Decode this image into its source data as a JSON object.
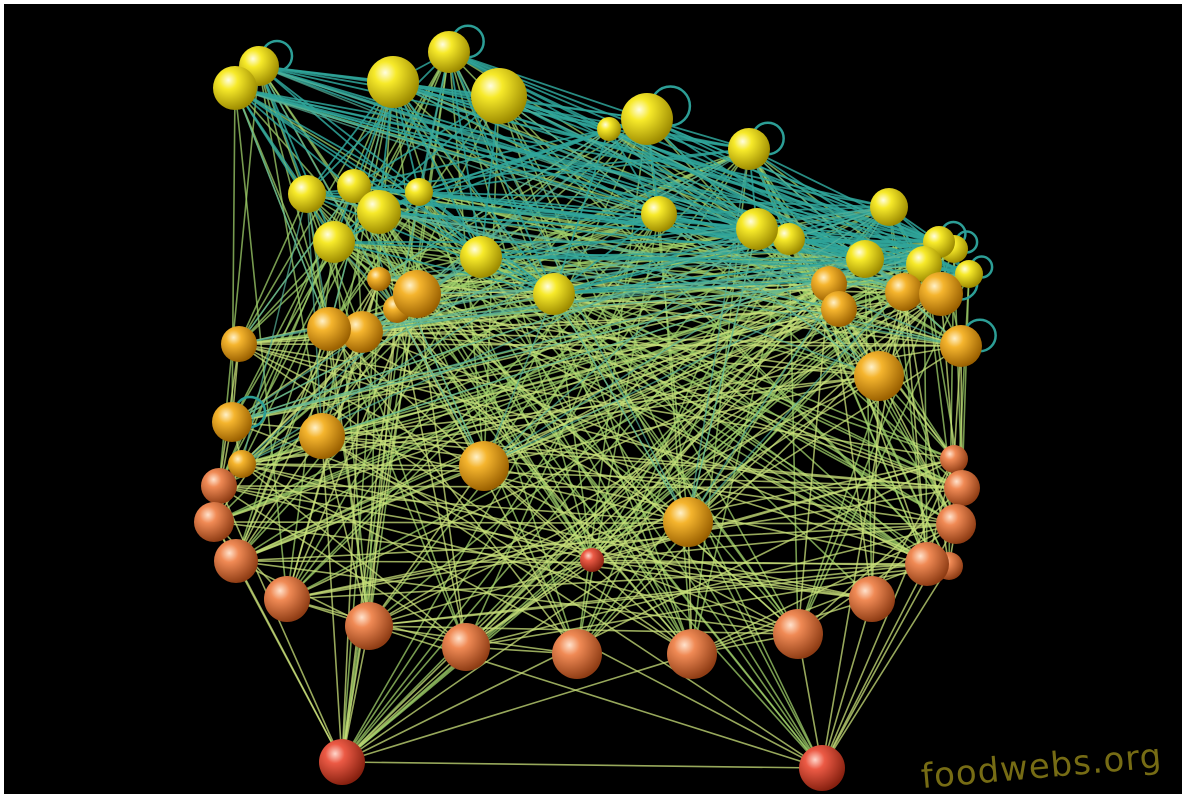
{
  "watermark": "foodwebs.org",
  "colors": {
    "background": "#000000",
    "top_node": "#f3e21c",
    "mid_node": "#f3b12a",
    "basal_node": "#f08a55",
    "base_node": "#ec5a45",
    "upper_link": "#2fa59a",
    "lower_link": "#c9e07a"
  }
}
